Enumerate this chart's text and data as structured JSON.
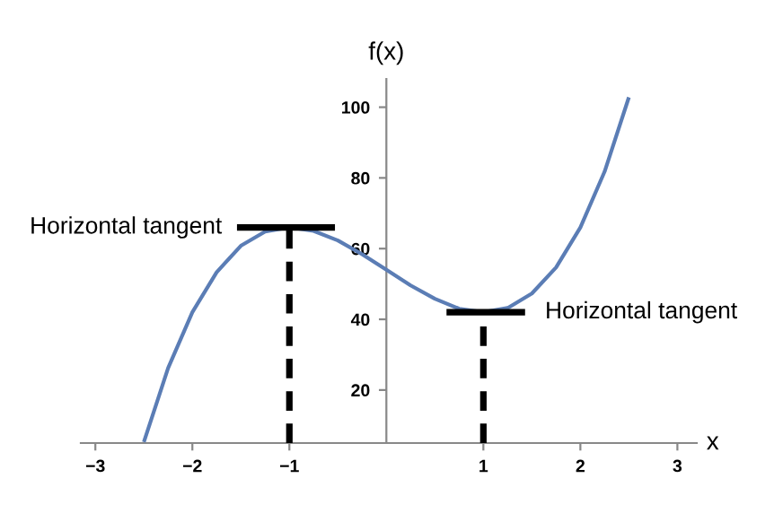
{
  "chart_data": {
    "type": "line",
    "xlabel": "x",
    "ylabel": "f(x)",
    "xlim": [
      -3.15,
      3.2
    ],
    "ylim": [
      5,
      108
    ],
    "xticks": [
      -3,
      -2,
      -1,
      1,
      2,
      3
    ],
    "yticks": [
      20,
      40,
      60,
      80,
      100
    ],
    "grid": false,
    "marker": "none",
    "series": [
      {
        "color": "#5b7db5",
        "line_style": "solid",
        "x": [
          -2.5,
          -2.25,
          -2,
          -1.75,
          -1.5,
          -1.25,
          -1,
          -0.75,
          -0.5,
          -0.25,
          0,
          0.25,
          0.5,
          0.75,
          1,
          1.25,
          1.5,
          1.75,
          2,
          2.25,
          2.5
        ],
        "values": [
          5.3,
          26.2,
          42,
          53.3,
          60.8,
          64.8,
          66,
          65,
          62.3,
          58.4,
          54,
          49.6,
          45.8,
          43,
          42,
          43.2,
          47.3,
          54.7,
          66,
          81.8,
          102.8
        ]
      },
      {
        "color": "#000000",
        "line_style": "solid",
        "x": [
          -1.54,
          -0.53
        ],
        "values": [
          66,
          66
        ]
      },
      {
        "color": "#000000",
        "line_style": "solid",
        "x": [
          0.62,
          1.43
        ],
        "values": [
          42,
          42
        ]
      },
      {
        "color": "#000000",
        "line_style": "dashed",
        "x": [
          -1,
          -1
        ],
        "values": [
          5,
          66
        ]
      },
      {
        "color": "#000000",
        "line_style": "dashed",
        "x": [
          1,
          1
        ],
        "values": [
          5,
          42
        ]
      }
    ],
    "annotations": [
      {
        "text": "Horizontal tangent",
        "x": -1.54,
        "y": 66
      },
      {
        "text": "Horizontal tangent",
        "x": 1.43,
        "y": 42
      }
    ]
  }
}
